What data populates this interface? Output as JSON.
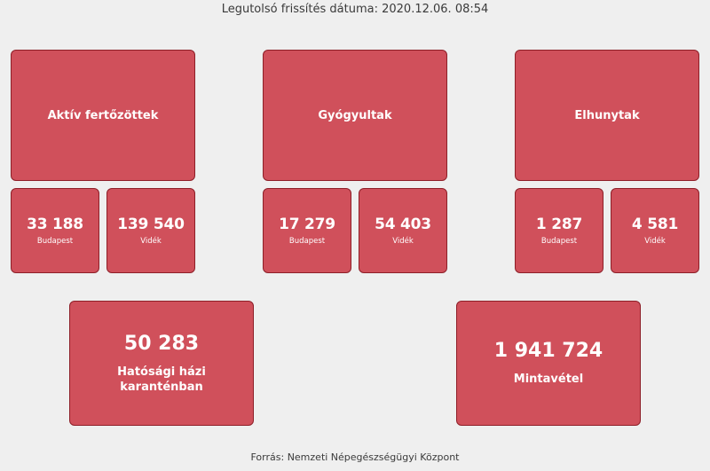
{
  "header": {
    "update_text": "Legutolsó frissítés dátuma: 2020.12.06. 08:54"
  },
  "groups": [
    {
      "title": "Aktív fertőzöttek",
      "budapest": {
        "value": "33 188",
        "label": "Budapest"
      },
      "videk": {
        "value": "139 540",
        "label": "Vidék"
      }
    },
    {
      "title": "Gyógyultak",
      "budapest": {
        "value": "17 279",
        "label": "Budapest"
      },
      "videk": {
        "value": "54 403",
        "label": "Vidék"
      }
    },
    {
      "title": "Elhunytak",
      "budapest": {
        "value": "1 287",
        "label": "Budapest"
      },
      "videk": {
        "value": "4 581",
        "label": "Vidék"
      }
    }
  ],
  "quarantine": {
    "value": "50 283",
    "label": "Hatósági házi karanténban"
  },
  "tests": {
    "value": "1 941 724",
    "label": "Mintavétel"
  },
  "footer": {
    "source_text": "Forrás: Nemzeti Népegészségügyi Központ"
  },
  "colors": {
    "card_fill": "#d0505b",
    "card_border": "#8e1f28",
    "background": "#efefef"
  }
}
